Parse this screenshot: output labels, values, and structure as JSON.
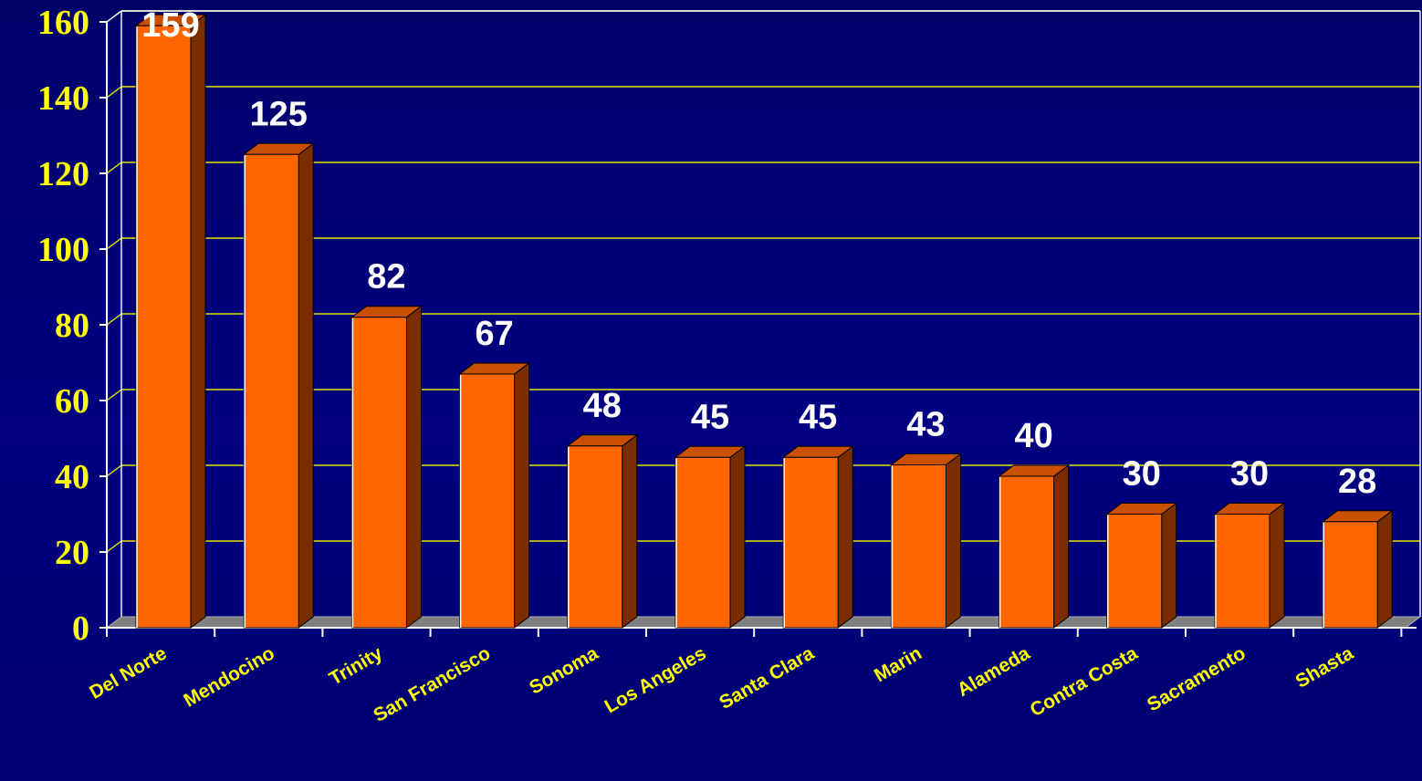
{
  "chart_data": {
    "type": "bar",
    "title": "",
    "xlabel": "",
    "ylabel": "",
    "categories": [
      "Del Norte",
      "Mendocino",
      "Trinity",
      "San Francisco",
      "Sonoma",
      "Los Angeles",
      "Santa Clara",
      "Marin",
      "Alameda",
      "Contra Costa",
      "Sacramento",
      "Shasta"
    ],
    "values": [
      159,
      125,
      82,
      67,
      48,
      45,
      45,
      43,
      40,
      30,
      30,
      28
    ],
    "data_labels": [
      "159",
      "125",
      "82",
      "67",
      "48",
      "45",
      "45",
      "43",
      "40",
      "30",
      "30",
      "28"
    ],
    "y_ticks": [
      "0",
      "20",
      "40",
      "60",
      "80",
      "100",
      "120",
      "140",
      "160"
    ],
    "ylim": [
      0,
      160
    ],
    "grid": true,
    "legend": "none",
    "three_d": true
  },
  "colors": {
    "background": "#000080",
    "bar_front": "#ff6600",
    "bar_side": "#7a2e00",
    "bar_top": "#c85000",
    "gridline": "#e6e600",
    "tick_label": "#ffff00",
    "data_label": "#ffffff",
    "axis_line": "#ffffff",
    "floor": "#808080"
  }
}
